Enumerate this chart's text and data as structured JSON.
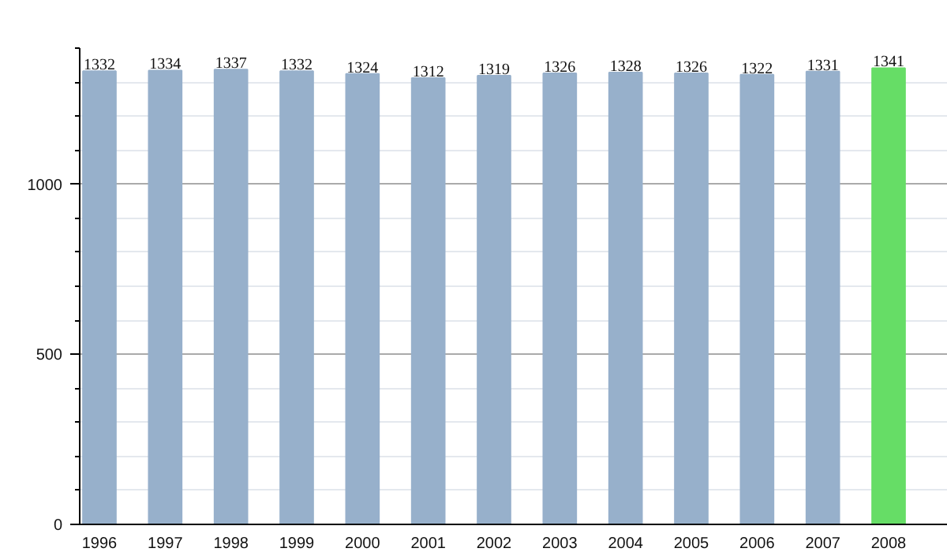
{
  "chart_data": {
    "type": "bar",
    "categories": [
      "1996",
      "1997",
      "1998",
      "1999",
      "2000",
      "2001",
      "2002",
      "2003",
      "2004",
      "2005",
      "2006",
      "2007",
      "2008"
    ],
    "values": [
      1332,
      1334,
      1337,
      1332,
      1324,
      1312,
      1319,
      1326,
      1328,
      1326,
      1322,
      1331,
      1341
    ],
    "colors": [
      "#97b0cb",
      "#97b0cb",
      "#97b0cb",
      "#97b0cb",
      "#97b0cb",
      "#97b0cb",
      "#97b0cb",
      "#97b0cb",
      "#97b0cb",
      "#97b0cb",
      "#97b0cb",
      "#97b0cb",
      "#66dd66"
    ],
    "ylim": [
      0,
      1400
    ],
    "yticks": [
      0,
      {
        "value": 100,
        "label": null
      },
      {
        "value": 200,
        "label": null
      },
      {
        "value": 300,
        "label": null
      },
      {
        "value": 400,
        "label": null
      },
      500,
      {
        "value": 600,
        "label": null
      },
      {
        "value": 700,
        "label": null
      },
      {
        "value": 800,
        "label": null
      },
      {
        "value": 900,
        "label": null
      },
      1000,
      {
        "value": 1100,
        "label": null
      },
      {
        "value": 1200,
        "label": null
      },
      {
        "value": 1300,
        "label": null
      },
      {
        "value": 1400,
        "label": null
      }
    ],
    "grid": "y",
    "data_labels": true
  }
}
